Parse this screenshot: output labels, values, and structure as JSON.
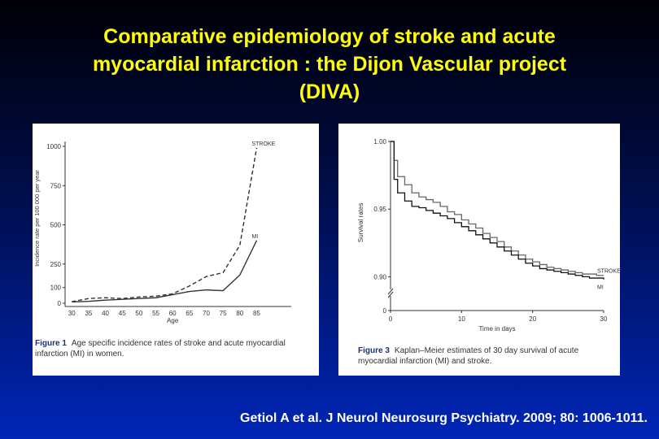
{
  "slide": {
    "title_lines": [
      "Comparative epidemiology of stroke and acute",
      "myocardial infarction : the Dijon Vascular project",
      "(DIVA)"
    ],
    "citation": "Getiol A et al. J Neurol Neurosurg Psychiatry. 2009; 80: 1006-1011."
  },
  "figures": [
    {
      "caption_label": "Figure 1",
      "caption_text": "Age specific incidence rates of stroke and acute myocardial infarction (MI) in women."
    },
    {
      "caption_label": "Figure 3",
      "caption_text": "Kaplan–Meier estimates of 30 day survival of acute myocardial infarction (MI) and stroke."
    }
  ],
  "chart_data": [
    {
      "type": "line",
      "xlabel": "Age",
      "ylabel": "Incidence rate per 100 000 per year",
      "x_ticks": [
        30,
        35,
        40,
        45,
        50,
        55,
        60,
        65,
        70,
        75,
        80,
        85
      ],
      "y_ticks": [
        0,
        100,
        250,
        500,
        750,
        1000
      ],
      "xlim": [
        28,
        89
      ],
      "ylim": [
        0,
        1000
      ],
      "grid": false,
      "x": [
        30,
        35,
        40,
        45,
        50,
        55,
        60,
        65,
        70,
        75,
        80,
        85
      ],
      "series": [
        {
          "name": "STROKE",
          "style": "dashed",
          "values": [
            10,
            30,
            35,
            30,
            40,
            45,
            60,
            110,
            170,
            195,
            370,
            990
          ]
        },
        {
          "name": "MI",
          "style": "solid",
          "values": [
            8,
            12,
            20,
            25,
            30,
            35,
            55,
            75,
            85,
            80,
            180,
            400
          ]
        }
      ]
    },
    {
      "type": "line",
      "step": true,
      "xlabel": "Time in days",
      "ylabel": "Survival rates",
      "x_ticks": [
        0,
        10,
        20,
        30
      ],
      "y_ticks": [
        0,
        0.9,
        0.95,
        1.0
      ],
      "y_tick_labels": [
        "0",
        "0.90",
        "0.95",
        "1.00"
      ],
      "xlim": [
        0,
        30
      ],
      "ylim": [
        0.875,
        1.0
      ],
      "y_axis_break": true,
      "grid": false,
      "series": [
        {
          "name": "STROKE",
          "color": "#666666",
          "x": [
            0,
            0.5,
            1,
            2,
            3,
            4,
            5,
            6,
            7,
            8,
            9,
            10,
            11,
            12,
            13,
            14,
            15,
            16,
            17,
            18,
            19,
            20,
            21,
            22,
            23,
            24,
            25,
            26,
            27,
            28,
            29,
            30
          ],
          "values": [
            1.0,
            0.986,
            0.974,
            0.968,
            0.962,
            0.959,
            0.957,
            0.955,
            0.952,
            0.948,
            0.946,
            0.942,
            0.939,
            0.936,
            0.932,
            0.929,
            0.926,
            0.922,
            0.919,
            0.916,
            0.913,
            0.911,
            0.909,
            0.907,
            0.906,
            0.905,
            0.904,
            0.903,
            0.902,
            0.902,
            0.901,
            0.901
          ]
        },
        {
          "name": "MI",
          "color": "#111111",
          "x": [
            0,
            0.5,
            1,
            2,
            3,
            4,
            5,
            6,
            7,
            8,
            9,
            10,
            11,
            12,
            13,
            14,
            15,
            16,
            17,
            18,
            19,
            20,
            21,
            22,
            23,
            24,
            25,
            26,
            27,
            28,
            29,
            30
          ],
          "values": [
            1.0,
            0.972,
            0.962,
            0.956,
            0.952,
            0.951,
            0.949,
            0.947,
            0.945,
            0.943,
            0.94,
            0.937,
            0.934,
            0.931,
            0.928,
            0.925,
            0.922,
            0.919,
            0.916,
            0.913,
            0.91,
            0.908,
            0.906,
            0.905,
            0.904,
            0.903,
            0.902,
            0.901,
            0.9,
            0.899,
            0.899,
            0.898
          ]
        }
      ]
    }
  ]
}
